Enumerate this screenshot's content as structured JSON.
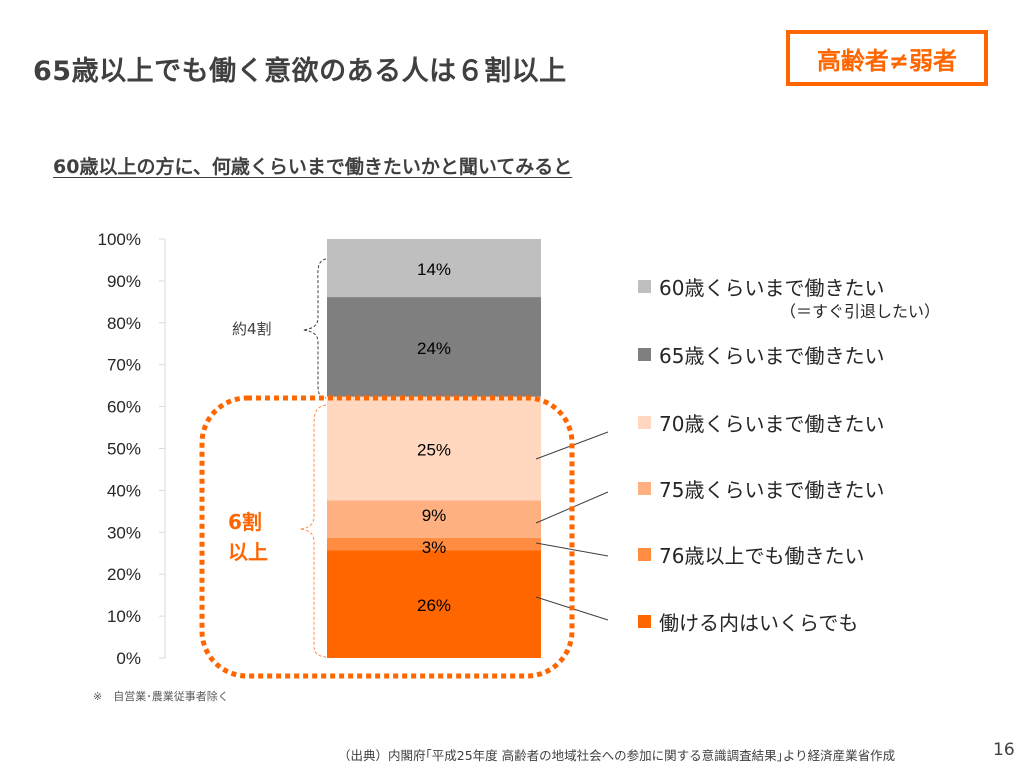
{
  "header": {
    "title": "65歳以上でも働く意欲のある人は６割以上",
    "badge": "高齢者≠弱者"
  },
  "subtitle": "60歳以上の方に、何歳くらいまで働きたいかと聞いてみると",
  "annotations": {
    "about_40": "約4割",
    "over_60_line1": "6割",
    "over_60_line2": "以上"
  },
  "legend_note": "（＝すぐ引退したい）",
  "footnote": "※　自営業･農業従事者除く",
  "source": "（出典）内閣府｢平成25年度 高齢者の地域社会への参加に関する意識調査結果｣より経済産業省作成",
  "page_number": "16",
  "colors": {
    "accent": "#ff6600",
    "text": "#404040"
  },
  "chart_data": {
    "type": "bar",
    "stacked": true,
    "categories": [
      ""
    ],
    "ylim": [
      0,
      100
    ],
    "ytick_labels": [
      "0%",
      "10%",
      "20%",
      "30%",
      "40%",
      "50%",
      "60%",
      "70%",
      "80%",
      "90%",
      "100%"
    ],
    "yticks": [
      0,
      10,
      20,
      30,
      40,
      50,
      60,
      70,
      80,
      90,
      100
    ],
    "grid": false,
    "legend_position": "right",
    "series": [
      {
        "name": "働ける内はいくらでも",
        "values": [
          26
        ],
        "label": "26%",
        "color": "#ff6600"
      },
      {
        "name": "76歳以上でも働きたい",
        "values": [
          3
        ],
        "label": "3%",
        "color": "#ff8c40"
      },
      {
        "name": "75歳くらいまで働きたい",
        "values": [
          9
        ],
        "label": "9%",
        "color": "#ffb080"
      },
      {
        "name": "70歳くらいまで働きたい",
        "values": [
          25
        ],
        "label": "25%",
        "color": "#ffd8bf"
      },
      {
        "name": "65歳くらいまで働きたい",
        "values": [
          24
        ],
        "label": "24%",
        "color": "#7f7f7f"
      },
      {
        "name": "60歳くらいまで働きたい",
        "values": [
          14
        ],
        "label": "14%",
        "color": "#bfbfbf"
      }
    ]
  }
}
